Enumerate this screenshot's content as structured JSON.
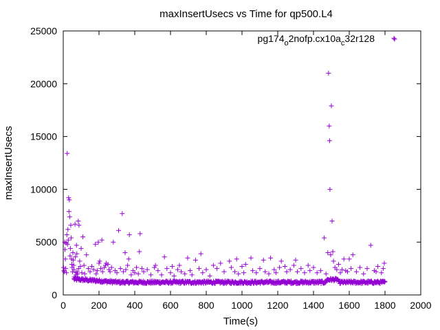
{
  "chart_data": {
    "type": "scatter",
    "title": "maxInsertUsecs vs Time for qp500.L4",
    "xlabel": "Time(s)",
    "ylabel": "maxInsertUsecs",
    "xlim": [
      0,
      2000
    ],
    "ylim": [
      0,
      25000
    ],
    "xticks": [
      0,
      200,
      400,
      600,
      800,
      1000,
      1200,
      1400,
      1600,
      1800,
      2000
    ],
    "yticks": [
      0,
      5000,
      10000,
      15000,
      20000,
      25000
    ],
    "grid": false,
    "legend_position": "top-right",
    "series": [
      {
        "name": "pg174_o2nofp.cx10a_c32r128",
        "name_parts": {
          "base": "pg174",
          "sub1": "o",
          "mid": "2nofp.cx10a",
          "sub2": "c",
          "tail": "32r128"
        },
        "color": "#9400d3",
        "marker": "+",
        "points": [
          [
            2,
            2600
          ],
          [
            4,
            2300
          ],
          [
            6,
            2200
          ],
          [
            8,
            5000
          ],
          [
            10,
            4300
          ],
          [
            12,
            3400
          ],
          [
            14,
            2500
          ],
          [
            16,
            4900
          ],
          [
            18,
            2100
          ],
          [
            20,
            5700
          ],
          [
            22,
            13400
          ],
          [
            24,
            4800
          ],
          [
            26,
            6200
          ],
          [
            28,
            5200
          ],
          [
            30,
            9200
          ],
          [
            32,
            7900
          ],
          [
            34,
            9000
          ],
          [
            36,
            7400
          ],
          [
            38,
            3700
          ],
          [
            40,
            4400
          ],
          [
            42,
            6600
          ],
          [
            44,
            5400
          ],
          [
            46,
            3400
          ],
          [
            48,
            2900
          ],
          [
            50,
            2600
          ],
          [
            52,
            2200
          ],
          [
            54,
            4000
          ],
          [
            56,
            3300
          ],
          [
            58,
            2800
          ],
          [
            60,
            2400
          ],
          [
            62,
            1700
          ],
          [
            66,
            6700
          ],
          [
            68,
            3600
          ],
          [
            70,
            2100
          ],
          [
            72,
            1900
          ],
          [
            74,
            4700
          ],
          [
            76,
            3900
          ],
          [
            78,
            2200
          ],
          [
            80,
            2000
          ],
          [
            84,
            7000
          ],
          [
            86,
            2500
          ],
          [
            88,
            6600
          ],
          [
            92,
            3200
          ],
          [
            96,
            2700
          ],
          [
            100,
            4400
          ],
          [
            104,
            2100
          ],
          [
            110,
            5500
          ],
          [
            116,
            2800
          ],
          [
            120,
            2000
          ],
          [
            130,
            3800
          ],
          [
            140,
            2500
          ],
          [
            150,
            2200
          ],
          [
            160,
            2700
          ],
          [
            170,
            2400
          ],
          [
            180,
            4800
          ],
          [
            184,
            2000
          ],
          [
            190,
            2300
          ],
          [
            196,
            5000
          ],
          [
            200,
            3000
          ],
          [
            204,
            3200
          ],
          [
            210,
            2500
          ],
          [
            216,
            5200
          ],
          [
            220,
            2200
          ],
          [
            230,
            2600
          ],
          [
            236,
            2800
          ],
          [
            240,
            3000
          ],
          [
            250,
            2900
          ],
          [
            256,
            2400
          ],
          [
            262,
            2200
          ],
          [
            270,
            2600
          ],
          [
            280,
            5000
          ],
          [
            290,
            2300
          ],
          [
            300,
            2100
          ],
          [
            310,
            6100
          ],
          [
            320,
            2500
          ],
          [
            330,
            7700
          ],
          [
            336,
            2200
          ],
          [
            346,
            4000
          ],
          [
            350,
            2400
          ],
          [
            360,
            2800
          ],
          [
            366,
            3400
          ],
          [
            370,
            5700
          ],
          [
            380,
            1900
          ],
          [
            390,
            2300
          ],
          [
            400,
            2100
          ],
          [
            410,
            2600
          ],
          [
            420,
            2000
          ],
          [
            426,
            4100
          ],
          [
            430,
            5800
          ],
          [
            440,
            2500
          ],
          [
            450,
            2200
          ],
          [
            470,
            2400
          ],
          [
            490,
            1900
          ],
          [
            510,
            2600
          ],
          [
            516,
            2800
          ],
          [
            530,
            2300
          ],
          [
            550,
            1900
          ],
          [
            566,
            3600
          ],
          [
            580,
            2500
          ],
          [
            600,
            2100
          ],
          [
            610,
            2700
          ],
          [
            620,
            1800
          ],
          [
            640,
            2400
          ],
          [
            650,
            2800
          ],
          [
            660,
            2200
          ],
          [
            680,
            2000
          ],
          [
            696,
            3500
          ],
          [
            710,
            2300
          ],
          [
            720,
            1900
          ],
          [
            740,
            3300
          ],
          [
            760,
            2500
          ],
          [
            770,
            3900
          ],
          [
            780,
            2100
          ],
          [
            800,
            2400
          ],
          [
            820,
            1800
          ],
          [
            840,
            2800
          ],
          [
            860,
            2500
          ],
          [
            880,
            3000
          ],
          [
            900,
            2200
          ],
          [
            930,
            3200
          ],
          [
            940,
            2600
          ],
          [
            960,
            2200
          ],
          [
            970,
            3400
          ],
          [
            980,
            2000
          ],
          [
            1000,
            2700
          ],
          [
            1010,
            2100
          ],
          [
            1020,
            2900
          ],
          [
            1050,
            3500
          ],
          [
            1060,
            2300
          ],
          [
            1080,
            2100
          ],
          [
            1100,
            2500
          ],
          [
            1120,
            3300
          ],
          [
            1130,
            2200
          ],
          [
            1150,
            2000
          ],
          [
            1160,
            3500
          ],
          [
            1180,
            2400
          ],
          [
            1190,
            2100
          ],
          [
            1210,
            2600
          ],
          [
            1220,
            3200
          ],
          [
            1240,
            2700
          ],
          [
            1250,
            2200
          ],
          [
            1270,
            2400
          ],
          [
            1290,
            2800
          ],
          [
            1300,
            3300
          ],
          [
            1310,
            2200
          ],
          [
            1330,
            2500
          ],
          [
            1350,
            2100
          ],
          [
            1370,
            2800
          ],
          [
            1380,
            2300
          ],
          [
            1400,
            2600
          ],
          [
            1420,
            2100
          ],
          [
            1440,
            2300
          ],
          [
            1460,
            5400
          ],
          [
            1470,
            2000
          ],
          [
            1480,
            4000
          ],
          [
            1484,
            21000
          ],
          [
            1488,
            16000
          ],
          [
            1490,
            14600
          ],
          [
            1492,
            10000
          ],
          [
            1496,
            3800
          ],
          [
            1500,
            17900
          ],
          [
            1504,
            7000
          ],
          [
            1508,
            4100
          ],
          [
            1512,
            3200
          ],
          [
            1520,
            2600
          ],
          [
            1530,
            2400
          ],
          [
            1540,
            2900
          ],
          [
            1550,
            2100
          ],
          [
            1560,
            2400
          ],
          [
            1570,
            3400
          ],
          [
            1580,
            2300
          ],
          [
            1590,
            2200
          ],
          [
            1600,
            3400
          ],
          [
            1610,
            2500
          ],
          [
            1620,
            3800
          ],
          [
            1640,
            2200
          ],
          [
            1660,
            2600
          ],
          [
            1680,
            2000
          ],
          [
            1700,
            2500
          ],
          [
            1720,
            4700
          ],
          [
            1740,
            2300
          ],
          [
            1750,
            2200
          ],
          [
            1760,
            2700
          ],
          [
            1780,
            2100
          ],
          [
            1790,
            2500
          ],
          [
            1796,
            3000
          ],
          [
            1850,
            24300
          ]
        ]
      }
    ]
  }
}
